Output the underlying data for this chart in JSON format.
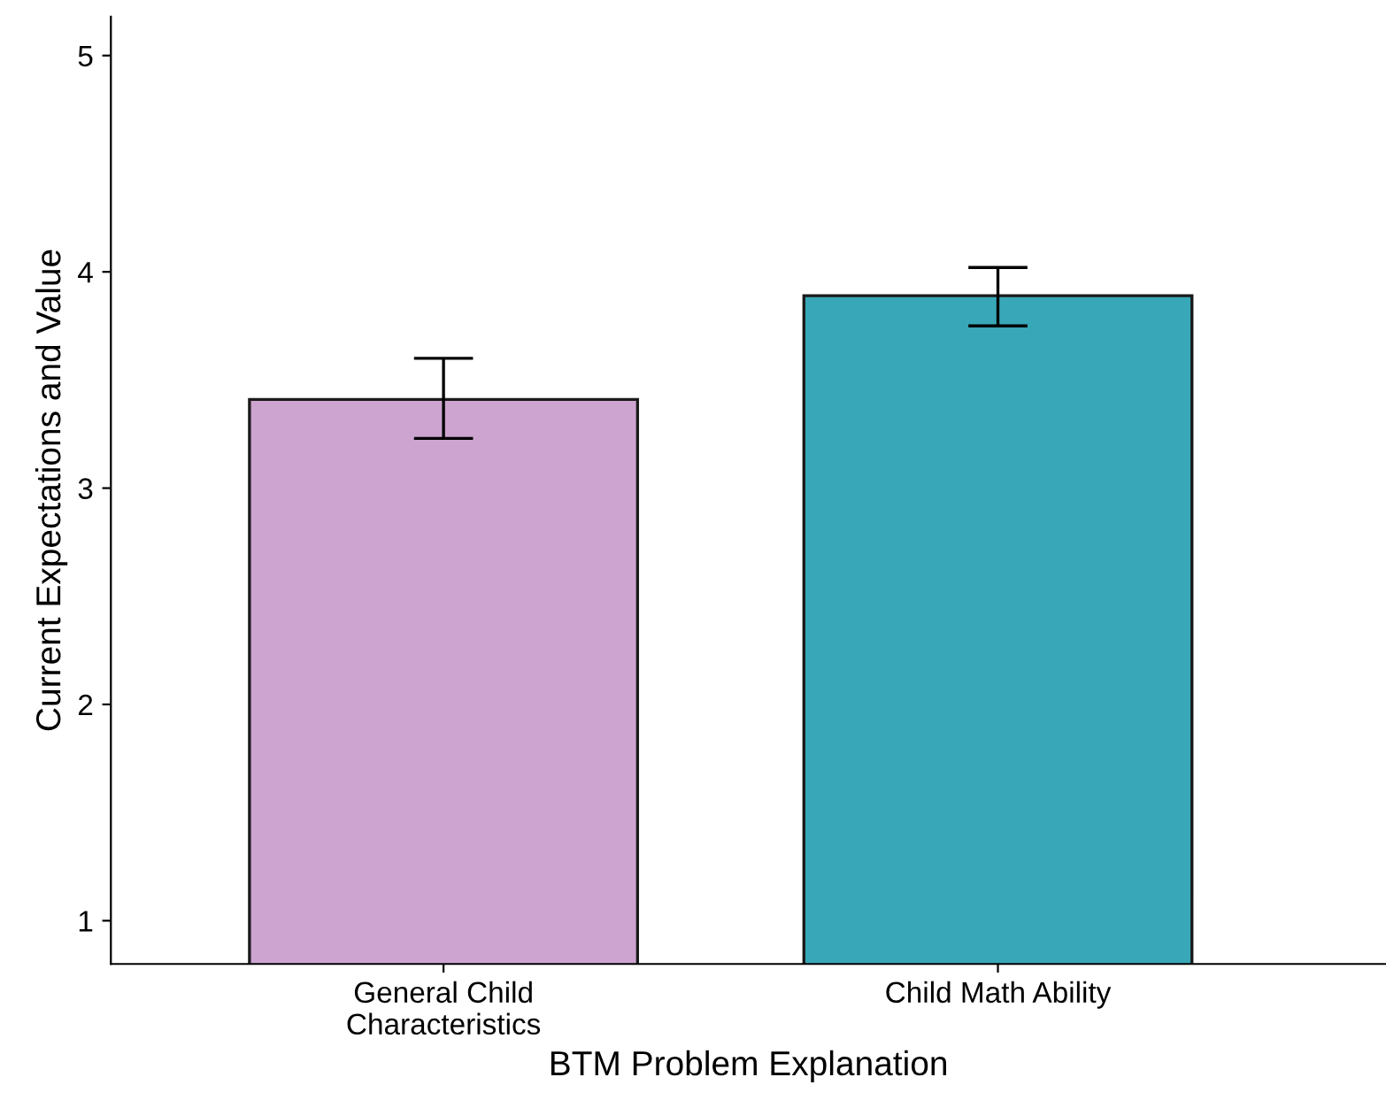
{
  "chart_data": {
    "type": "bar",
    "xlabel": "BTM Problem Explanation",
    "ylabel": "Current Expectations and Value",
    "categories": [
      "General Child\nCharacteristics",
      "Child Math Ability"
    ],
    "values": [
      3.41,
      3.89
    ],
    "colors": [
      "#cda4d0",
      "#38a7b7"
    ],
    "errors": [
      [
        3.23,
        3.6
      ],
      [
        3.75,
        4.02
      ]
    ],
    "ylim": [
      0.8,
      5.18
    ],
    "yticks": [
      1,
      2,
      3,
      4,
      5
    ],
    "grid": false,
    "legend": false
  }
}
